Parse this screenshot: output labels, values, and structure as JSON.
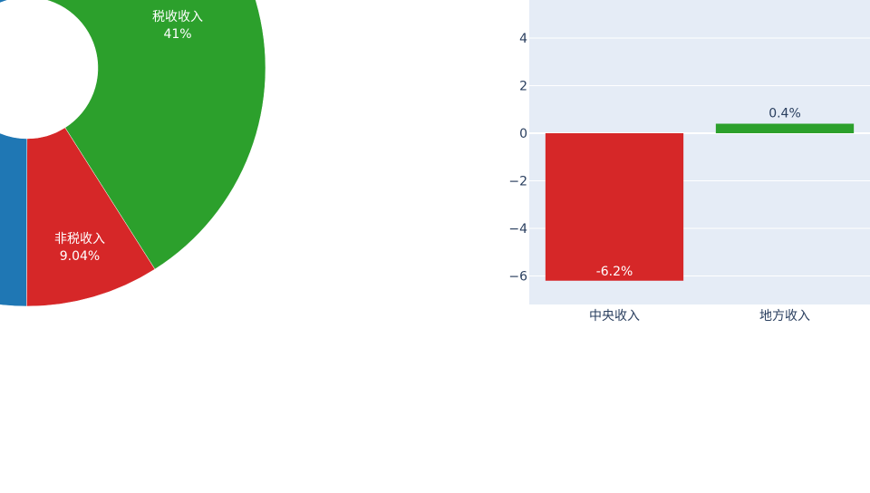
{
  "chart_data": [
    {
      "type": "pie",
      "hole": true,
      "slices": [
        {
          "label": "税收收入",
          "percent_text": "41%",
          "value": 41,
          "color": "#2ca02c"
        },
        {
          "label": "非税收入",
          "percent_text": "9.04%",
          "value": 9.04,
          "color": "#d62728"
        },
        {
          "label": "",
          "percent_text": "",
          "value": 49.96,
          "color": "#1f77b4"
        }
      ]
    },
    {
      "type": "bar",
      "categories": [
        "中央收入",
        "地方收入"
      ],
      "values": [
        -6.2,
        0.4
      ],
      "value_labels": [
        "-6.2%",
        "0.4%"
      ],
      "colors": [
        "#d62728",
        "#2ca02c"
      ],
      "ylim": [
        -7.2,
        5.6
      ],
      "yticks": [
        4,
        2,
        0,
        -2,
        -4,
        -6
      ],
      "ytick_labels": [
        "4",
        "2",
        "0",
        "−2",
        "−4",
        "−6"
      ],
      "grid": true,
      "background": "#e5ecf6"
    }
  ]
}
